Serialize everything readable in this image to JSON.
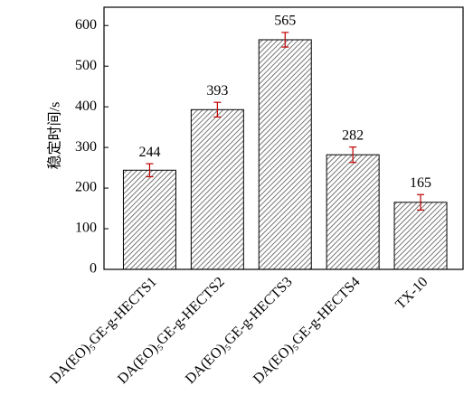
{
  "chart_data": {
    "type": "bar",
    "y_label": "稳定时间/s",
    "categories": [
      "DA(EO)₅GE-g-HECTS1",
      "DA(EO)₅GE-g-HECTS2",
      "DA(EO)₅GE-g-HECTS3",
      "DA(EO)₅GE-g-HECTS4",
      "TX-10"
    ],
    "values": [
      244,
      393,
      565,
      282,
      165
    ],
    "errors": [
      16,
      18,
      18,
      19,
      19
    ],
    "color": "#555555",
    "error_color": "#c00000",
    "ylim": [
      0,
      645
    ],
    "yticks": [
      0,
      100,
      200,
      300,
      400,
      500,
      600
    ]
  }
}
